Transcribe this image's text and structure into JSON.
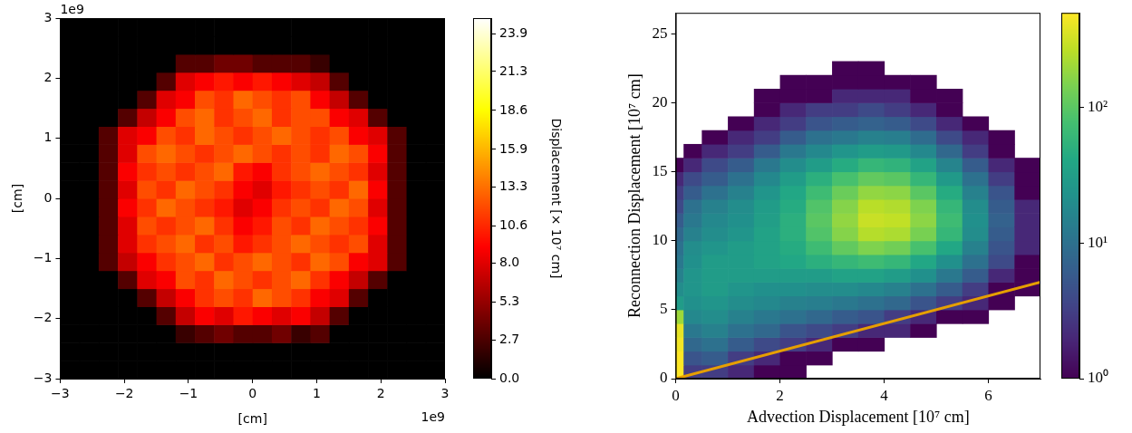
{
  "chart_data": [
    {
      "type": "heatmap",
      "xlabel": "[cm]",
      "ylabel": "[cm]",
      "x_offset_text": "1e9",
      "y_offset_text": "1e9",
      "xlim": [
        -3,
        3
      ],
      "ylim": [
        -3,
        3
      ],
      "xticks": [
        {
          "value": -3,
          "label": "−3"
        },
        {
          "value": -2,
          "label": "−2"
        },
        {
          "value": -1,
          "label": "−1"
        },
        0,
        1,
        2,
        3
      ],
      "yticks": [
        {
          "value": -3,
          "label": "−3"
        },
        {
          "value": -2,
          "label": "−2"
        },
        {
          "value": -1,
          "label": "−1"
        },
        0,
        1,
        2,
        3
      ],
      "xbins": [
        -3,
        -2.7,
        -2.4,
        -2.1,
        -1.8,
        -1.5,
        -1.2,
        -0.9,
        -0.6,
        -0.3,
        0,
        0.3,
        0.6,
        0.9,
        1.2,
        1.5,
        1.8,
        2.1,
        2.4,
        2.7,
        3
      ],
      "ybins": [
        -3,
        -2.7,
        -2.4,
        -2.1,
        -1.8,
        -1.5,
        -1.2,
        -0.9,
        -0.6,
        -0.3,
        0,
        0.3,
        0.6,
        0.9,
        1.2,
        1.5,
        1.8,
        2.1,
        2.4,
        2.7,
        3
      ],
      "cells": [
        [
          0,
          0,
          0,
          0,
          0,
          0,
          0,
          0,
          0,
          0,
          0,
          0,
          0,
          0,
          0,
          0,
          0,
          0,
          0,
          0
        ],
        [
          0,
          0,
          0,
          0,
          0,
          0,
          0,
          0,
          0,
          0,
          0,
          0,
          0,
          0,
          0,
          0,
          0,
          0,
          0,
          0
        ],
        [
          0,
          0,
          0,
          0,
          0,
          0,
          2,
          3,
          4,
          3,
          3,
          4,
          2,
          3,
          0,
          0,
          0,
          0,
          0,
          0
        ],
        [
          0,
          0,
          0,
          0,
          0,
          3,
          7,
          9,
          8,
          10,
          9,
          8,
          9,
          7,
          3,
          0,
          0,
          0,
          0,
          0
        ],
        [
          0,
          0,
          0,
          0,
          3,
          7,
          9,
          11,
          12,
          11,
          13,
          12,
          11,
          9,
          8,
          3,
          0,
          0,
          0,
          0
        ],
        [
          0,
          0,
          0,
          3,
          8,
          9,
          12,
          11,
          13,
          12,
          11,
          12,
          13,
          11,
          9,
          7,
          3,
          0,
          0,
          0
        ],
        [
          0,
          0,
          3,
          7,
          9,
          11,
          12,
          13,
          11,
          12,
          13,
          12,
          11,
          13,
          12,
          9,
          8,
          3,
          0,
          0
        ],
        [
          0,
          0,
          3,
          8,
          11,
          12,
          13,
          11,
          12,
          10,
          11,
          12,
          13,
          12,
          11,
          12,
          8,
          3,
          0,
          0
        ],
        [
          0,
          0,
          3,
          8,
          12,
          11,
          12,
          13,
          11,
          9,
          10,
          12,
          11,
          13,
          12,
          11,
          9,
          3,
          0,
          0
        ],
        [
          0,
          0,
          3,
          9,
          11,
          13,
          12,
          11,
          10,
          8,
          9,
          11,
          12,
          11,
          13,
          12,
          8,
          3,
          0,
          0
        ],
        [
          0,
          0,
          3,
          8,
          12,
          11,
          13,
          12,
          11,
          9,
          8,
          10,
          11,
          12,
          11,
          13,
          9,
          3,
          0,
          0
        ],
        [
          0,
          0,
          3,
          9,
          11,
          12,
          11,
          12,
          13,
          10,
          9,
          11,
          12,
          13,
          12,
          11,
          8,
          3,
          0,
          0
        ],
        [
          0,
          0,
          3,
          8,
          12,
          13,
          12,
          11,
          12,
          13,
          12,
          11,
          12,
          11,
          13,
          12,
          9,
          3,
          0,
          0
        ],
        [
          0,
          0,
          3,
          8,
          9,
          12,
          11,
          13,
          12,
          11,
          12,
          13,
          12,
          11,
          12,
          9,
          8,
          3,
          0,
          0
        ],
        [
          0,
          0,
          0,
          3,
          7,
          9,
          12,
          13,
          11,
          12,
          13,
          11,
          12,
          12,
          9,
          8,
          3,
          0,
          0,
          0
        ],
        [
          0,
          0,
          0,
          0,
          3,
          8,
          9,
          12,
          11,
          13,
          12,
          11,
          12,
          9,
          7,
          3,
          0,
          0,
          0,
          0
        ],
        [
          0,
          0,
          0,
          0,
          0,
          3,
          8,
          9,
          10,
          9,
          10,
          9,
          8,
          7,
          3,
          0,
          0,
          0,
          0,
          0
        ],
        [
          0,
          0,
          0,
          0,
          0,
          0,
          3,
          3,
          4,
          4,
          3,
          3,
          3,
          2,
          0,
          0,
          0,
          0,
          0,
          0
        ],
        [
          0,
          0,
          0,
          0,
          0,
          0,
          0,
          0,
          0,
          0,
          0,
          0,
          0,
          0,
          0,
          0,
          0,
          0,
          0,
          0
        ],
        [
          0,
          0,
          0,
          0,
          0,
          0,
          0,
          0,
          0,
          0,
          0,
          0,
          0,
          0,
          0,
          0,
          0,
          0,
          0,
          0
        ]
      ],
      "color": "hot",
      "colorbar": {
        "label": "Displacement [× 10⁷ cm]",
        "range": [
          0,
          25
        ],
        "ticks": [
          {
            "value": 0,
            "label": "0.0"
          },
          2.7,
          5.3,
          {
            "value": 8,
            "label": "8.0"
          },
          10.6,
          13.3,
          15.9,
          18.6,
          21.3,
          23.9
        ]
      }
    },
    {
      "type": "histogram2d",
      "xlabel": "Advection Displacement [10⁷ cm]",
      "ylabel": "Reconnection Displacement [10⁷ cm]",
      "xlim": [
        0,
        7
      ],
      "ylim": [
        0,
        26.5
      ],
      "xticks": [
        0,
        2,
        4,
        6
      ],
      "yticks": [
        0,
        5,
        10,
        15,
        20,
        25
      ],
      "xbins": [
        0,
        0.15,
        0.5,
        1,
        1.5,
        2,
        2.5,
        3,
        3.5,
        4,
        4.5,
        5,
        5.5,
        6,
        6.5,
        7
      ],
      "ybins": [
        0,
        1,
        2,
        3,
        4,
        5,
        6,
        7,
        8,
        9,
        10,
        11,
        12,
        13,
        14,
        15,
        16,
        17,
        18,
        19,
        20,
        21,
        22,
        23
      ],
      "counts": [
        [
          500,
          3,
          3,
          2,
          1,
          1,
          0,
          0,
          0,
          0,
          0,
          0,
          0,
          0,
          0
        ],
        [
          500,
          5,
          6,
          3,
          2,
          1,
          1,
          0,
          0,
          0,
          0,
          0,
          0,
          0,
          0
        ],
        [
          450,
          8,
          10,
          6,
          4,
          3,
          2,
          1,
          1,
          0,
          0,
          0,
          0,
          0,
          0
        ],
        [
          400,
          12,
          15,
          10,
          8,
          5,
          4,
          3,
          2,
          2,
          1,
          0,
          0,
          0,
          0
        ],
        [
          200,
          18,
          20,
          15,
          12,
          10,
          8,
          6,
          5,
          3,
          2,
          1,
          1,
          0,
          0
        ],
        [
          30,
          22,
          25,
          20,
          18,
          15,
          14,
          12,
          10,
          8,
          5,
          3,
          2,
          1,
          0
        ],
        [
          20,
          25,
          30,
          25,
          22,
          22,
          20,
          20,
          18,
          15,
          10,
          6,
          3,
          1,
          1
        ],
        [
          15,
          25,
          30,
          30,
          30,
          30,
          30,
          35,
          35,
          30,
          22,
          12,
          6,
          2,
          1
        ],
        [
          12,
          22,
          30,
          30,
          35,
          40,
          50,
          60,
          70,
          60,
          40,
          22,
          10,
          4,
          1
        ],
        [
          10,
          20,
          25,
          30,
          35,
          45,
          70,
          110,
          150,
          130,
          80,
          40,
          15,
          5,
          2
        ],
        [
          8,
          15,
          20,
          25,
          35,
          50,
          90,
          160,
          250,
          230,
          140,
          60,
          20,
          6,
          2
        ],
        [
          6,
          12,
          18,
          22,
          32,
          50,
          100,
          180,
          300,
          280,
          170,
          70,
          22,
          7,
          2
        ],
        [
          4,
          10,
          15,
          20,
          30,
          45,
          90,
          160,
          260,
          240,
          150,
          60,
          20,
          6,
          2
        ],
        [
          3,
          6,
          10,
          15,
          25,
          40,
          70,
          120,
          180,
          170,
          100,
          45,
          15,
          5,
          1
        ],
        [
          2,
          4,
          6,
          10,
          18,
          30,
          50,
          80,
          110,
          100,
          60,
          28,
          10,
          3,
          1
        ],
        [
          1,
          2,
          4,
          6,
          12,
          20,
          30,
          45,
          60,
          55,
          35,
          16,
          6,
          2,
          1
        ],
        [
          0,
          1,
          2,
          3,
          6,
          12,
          18,
          25,
          30,
          28,
          18,
          8,
          3,
          1,
          0
        ],
        [
          0,
          0,
          1,
          2,
          3,
          6,
          10,
          12,
          15,
          14,
          9,
          4,
          2,
          1,
          0
        ],
        [
          0,
          0,
          0,
          1,
          2,
          3,
          5,
          6,
          7,
          6,
          4,
          2,
          1,
          0,
          0
        ],
        [
          0,
          0,
          0,
          0,
          1,
          2,
          3,
          3,
          4,
          3,
          2,
          1,
          0,
          0,
          0
        ],
        [
          0,
          0,
          0,
          0,
          1,
          1,
          1,
          2,
          2,
          2,
          1,
          1,
          0,
          0,
          0
        ],
        [
          0,
          0,
          0,
          0,
          0,
          1,
          1,
          1,
          1,
          1,
          1,
          0,
          0,
          0,
          0
        ],
        [
          0,
          0,
          0,
          0,
          0,
          0,
          0,
          1,
          1,
          0,
          0,
          0,
          0,
          0,
          0
        ]
      ],
      "color": "viridis",
      "colorbar": {
        "log": true,
        "range": [
          1,
          500
        ],
        "ticks": [
          {
            "value": 1,
            "label": "10⁰"
          },
          {
            "value": 10,
            "label": "10¹"
          },
          {
            "value": 100,
            "label": "10²"
          }
        ]
      },
      "line": {
        "x": [
          0,
          7
        ],
        "y": [
          0,
          7
        ],
        "color": "#e69f00"
      }
    }
  ]
}
